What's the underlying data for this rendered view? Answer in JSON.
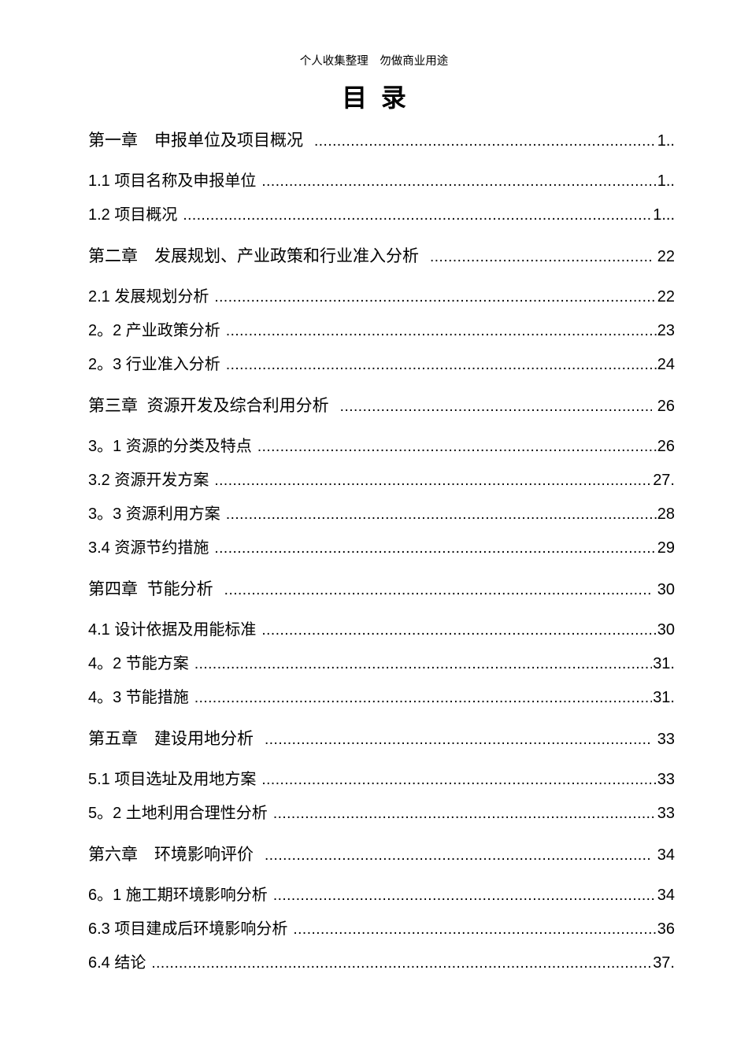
{
  "page": {
    "header": "个人收集整理　勿做商业用途",
    "title": "目  录"
  },
  "toc": {
    "entries": [
      {
        "level": "chapter",
        "label": "第一章　申报单位及项目概况",
        "page": "1.."
      },
      {
        "level": "sub",
        "label": "1.1 项目名称及申报单位",
        "page": "1.."
      },
      {
        "level": "sub",
        "label": "1.2 项目概况",
        "page": "1..."
      },
      {
        "level": "chapter",
        "label": "第二章　发展规划、产业政策和行业准入分析",
        "page": " 22"
      },
      {
        "level": "sub",
        "label": "2.1 发展规划分析",
        "page": "22"
      },
      {
        "level": "sub",
        "label": "2。2 产业政策分析",
        "page": "23"
      },
      {
        "level": "sub",
        "label": "2。3 行业准入分析",
        "page": "24"
      },
      {
        "level": "chapter",
        "label": "第三章  资源开发及综合利用分析",
        "page": " 26"
      },
      {
        "level": "sub",
        "label": "3。1 资源的分类及特点",
        "page": "26"
      },
      {
        "level": "sub",
        "label": "3.2 资源开发方案",
        "page": "27."
      },
      {
        "level": "sub",
        "label": "3。3 资源利用方案",
        "page": "28"
      },
      {
        "level": "sub",
        "label": "3.4 资源节约措施",
        "page": "29"
      },
      {
        "level": "chapter",
        "label": "第四章  节能分析",
        "page": " 30"
      },
      {
        "level": "sub",
        "label": "4.1 设计依据及用能标准",
        "page": "30"
      },
      {
        "level": "sub",
        "label": "4。2 节能方案",
        "page": "31."
      },
      {
        "level": "sub",
        "label": "4。3 节能措施",
        "page": "31."
      },
      {
        "level": "chapter",
        "label": "第五章　建设用地分析",
        "page": " 33"
      },
      {
        "level": "sub",
        "label": "5.1 项目选址及用地方案",
        "page": "33"
      },
      {
        "level": "sub",
        "label": "5。2 土地利用合理性分析",
        "page": "33"
      },
      {
        "level": "chapter",
        "label": "第六章　环境影响评价",
        "page": " 34"
      },
      {
        "level": "sub",
        "label": "6。1 施工期环境影响分析",
        "page": "34"
      },
      {
        "level": "sub",
        "label": "6.3 项目建成后环境影响分析",
        "page": "36"
      },
      {
        "level": "sub",
        "label": "6.4 结论",
        "page": "37."
      }
    ]
  }
}
